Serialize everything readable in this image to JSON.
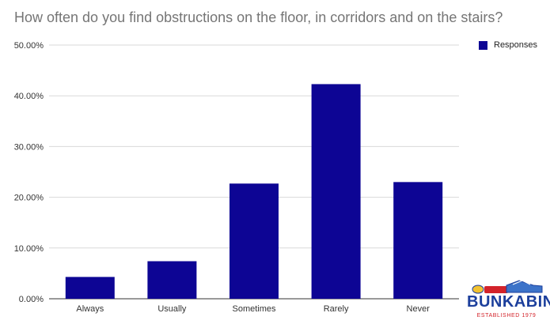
{
  "chart_data": {
    "type": "bar",
    "title": "How often do you find obstructions on the floor, in corridors and on the stairs?",
    "categories": [
      "Always",
      "Usually",
      "Sometimes",
      "Rarely",
      "Never"
    ],
    "series": [
      {
        "name": "Responses",
        "values": [
          4.3,
          7.4,
          22.7,
          42.3,
          23.0
        ],
        "color": "#0d0594"
      }
    ],
    "y_ticks": [
      "0.00%",
      "10.00%",
      "20.00%",
      "30.00%",
      "40.00%",
      "50.00%"
    ],
    "ylim": [
      0,
      50
    ],
    "grid": true,
    "legend_position": "top-right"
  },
  "logo": {
    "word": "BUNKABIN",
    "tagline": "ESTABLISHED 1979",
    "colors": {
      "primary": "#1c3f9c",
      "accent": "#d3232a"
    }
  }
}
